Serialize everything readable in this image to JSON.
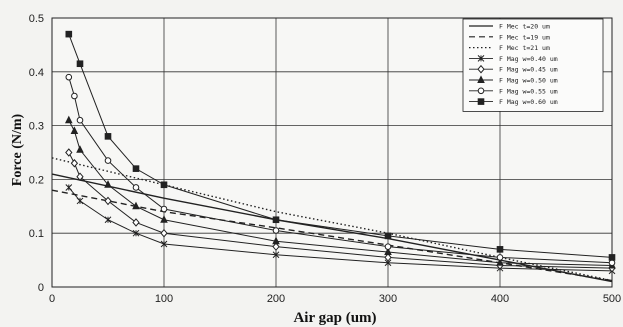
{
  "chart_data": {
    "type": "line",
    "xlabel": "Air gap (um)",
    "ylabel": "Force (N/m)",
    "xlim": [
      0,
      500
    ],
    "ylim": [
      0,
      0.5
    ],
    "x_ticks": [
      "0",
      "100",
      "200",
      "300",
      "400",
      "500"
    ],
    "y_ticks": [
      "0",
      "0.1",
      "0.2",
      "0.3",
      "0.4",
      "0.5"
    ],
    "grid": true,
    "legend_position": "top-right",
    "series": [
      {
        "name": "F Mec t=20 um",
        "style": "solid",
        "marker": "none",
        "x": [
          0,
          100,
          200,
          300,
          400,
          500
        ],
        "y": [
          0.21,
          0.165,
          0.125,
          0.09,
          0.05,
          0.01
        ]
      },
      {
        "name": "F Mec t=19 um",
        "style": "dashed",
        "marker": "none",
        "x": [
          0,
          100,
          200,
          300,
          400,
          500
        ],
        "y": [
          0.18,
          0.14,
          0.11,
          0.078,
          0.045,
          0.012
        ]
      },
      {
        "name": "F Mec t=21 um",
        "style": "dotted",
        "marker": "none",
        "x": [
          0,
          100,
          200,
          300,
          400,
          500
        ],
        "y": [
          0.24,
          0.19,
          0.14,
          0.1,
          0.055,
          0.012
        ]
      },
      {
        "name": "F Mag w=0.40 um",
        "style": "solid",
        "marker": "star",
        "x": [
          15,
          25,
          50,
          75,
          100,
          200,
          300,
          400,
          500
        ],
        "y": [
          0.185,
          0.16,
          0.125,
          0.1,
          0.08,
          0.06,
          0.045,
          0.035,
          0.03
        ]
      },
      {
        "name": "F Mag w=0.45 um",
        "style": "solid",
        "marker": "diamond",
        "x": [
          15,
          20,
          25,
          50,
          75,
          100,
          200,
          300,
          400,
          500
        ],
        "y": [
          0.25,
          0.23,
          0.205,
          0.16,
          0.12,
          0.1,
          0.075,
          0.055,
          0.04,
          0.035
        ]
      },
      {
        "name": "F Mag w=0.50 um",
        "style": "solid",
        "marker": "triangle",
        "x": [
          15,
          20,
          25,
          50,
          75,
          100,
          200,
          300,
          400,
          500
        ],
        "y": [
          0.31,
          0.29,
          0.255,
          0.19,
          0.15,
          0.125,
          0.085,
          0.065,
          0.045,
          0.04
        ]
      },
      {
        "name": "F Mag w=0.55 um",
        "style": "solid",
        "marker": "circle",
        "x": [
          15,
          20,
          25,
          50,
          75,
          100,
          200,
          300,
          400,
          500
        ],
        "y": [
          0.39,
          0.355,
          0.31,
          0.235,
          0.185,
          0.145,
          0.105,
          0.075,
          0.055,
          0.045
        ]
      },
      {
        "name": "F Mag w=0.60 um",
        "style": "solid",
        "marker": "square",
        "x": [
          15,
          25,
          50,
          75,
          100,
          200,
          300,
          400,
          500
        ],
        "y": [
          0.47,
          0.415,
          0.28,
          0.22,
          0.19,
          0.125,
          0.095,
          0.07,
          0.055
        ]
      }
    ]
  }
}
